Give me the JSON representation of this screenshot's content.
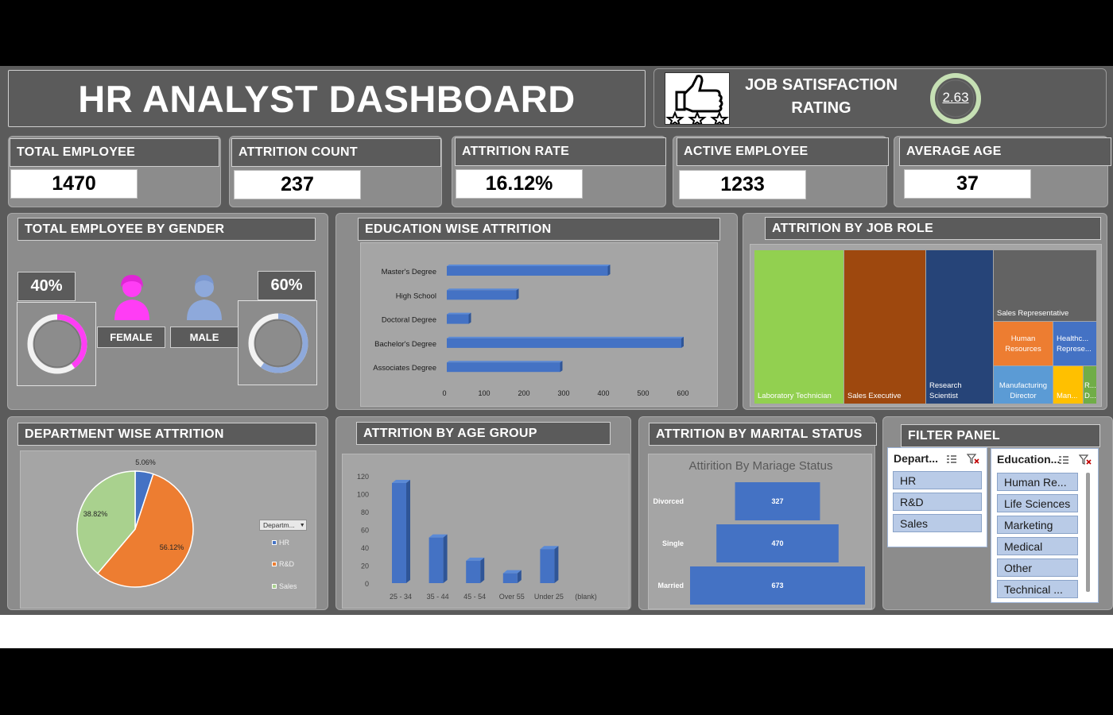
{
  "header": {
    "title": "HR ANALYST DASHBOARD"
  },
  "job_satisfaction": {
    "title_line1": "JOB SATISFACTION",
    "title_line2": "RATING",
    "value": "2.63",
    "ring_color": "#c6e0b4"
  },
  "kpis": [
    {
      "label": "TOTAL EMPLOYEE",
      "value": "1470"
    },
    {
      "label": "ATTRITION COUNT",
      "value": "237"
    },
    {
      "label": "ATTRITION RATE",
      "value": "16.12%"
    },
    {
      "label": "ACTIVE EMPLOYEE",
      "value": "1233"
    },
    {
      "label": "AVERAGE AGE",
      "value": "37"
    }
  ],
  "gender": {
    "title": "TOTAL EMPLOYEE BY GENDER",
    "female": {
      "label": "FEMALE",
      "pct": "40%",
      "fraction": 0.4,
      "color": "#ff3df5"
    },
    "male": {
      "label": "MALE",
      "pct": "60%",
      "fraction": 0.6,
      "color": "#8ea9db"
    }
  },
  "education_panel": {
    "title": "EDUCATION WISE ATTRITION"
  },
  "jobrole_panel": {
    "title": "ATTRITION BY JOB ROLE"
  },
  "department_panel": {
    "title": "DEPARTMENT WISE ATTRITION",
    "legend_button": "Departm...",
    "legend_items": [
      "HR",
      "R&D",
      "Sales"
    ]
  },
  "age_panel": {
    "title": "ATTRITION BY AGE GROUP"
  },
  "marital_panel": {
    "title": "ATTRITION BY MARITAL STATUS",
    "chart_title": "Attirition By Mariage Status"
  },
  "filter_panel": {
    "title": "FILTER PANEL",
    "department_slicer": {
      "header": "Depart...",
      "items": [
        "HR",
        "R&D",
        "Sales"
      ]
    },
    "education_slicer": {
      "header": "Education...",
      "items": [
        "Human Re...",
        "Life Sciences",
        "Marketing",
        "Medical",
        "Other",
        "Technical ..."
      ]
    }
  },
  "chart_data": [
    {
      "type": "bar",
      "orientation": "horizontal",
      "title": "",
      "categories": [
        "Master's Degree",
        "High School",
        "Doctoral Degree",
        "Bachelor's Degree",
        "Associates Degree"
      ],
      "values": [
        405,
        175,
        55,
        590,
        285
      ],
      "xlim": [
        0,
        600
      ],
      "xticks": [
        0,
        100,
        200,
        300,
        400,
        500,
        600
      ],
      "color": "#4472c4",
      "grid": false
    },
    {
      "type": "treemap",
      "title": "",
      "labels": [
        "Laboratory Technician",
        "Sales Executive",
        "Research Scientist",
        "Sales Representative",
        "Human Resources",
        "Healthc... Represe...",
        "Manufacturing Director",
        "Man...",
        "R... D..."
      ],
      "colors": [
        "#92d050",
        "#9e480e",
        "#264478",
        "#636363",
        "#ed7d31",
        "#4472c4",
        "#5b9bd5",
        "#ffc000",
        "#70ad47"
      ]
    },
    {
      "type": "pie",
      "title": "",
      "categories": [
        "HR",
        "R&D",
        "Sales"
      ],
      "values": [
        5.06,
        56.12,
        38.82
      ],
      "data_labels": [
        "5.06%",
        "56.12%",
        "38.82%"
      ],
      "colors": [
        "#4472c4",
        "#ed7d31",
        "#a9d18e"
      ],
      "legend": "right"
    },
    {
      "type": "bar",
      "orientation": "vertical",
      "title": "",
      "categories": [
        "25 - 34",
        "35 - 44",
        "45 - 54",
        "Over 55",
        "Under 25",
        "(blank)"
      ],
      "values": [
        112,
        51,
        25,
        11,
        38,
        0
      ],
      "ylim": [
        0,
        120
      ],
      "yticks": [
        0,
        20,
        40,
        60,
        80,
        100,
        120
      ],
      "color": "#4472c4",
      "grid": false
    },
    {
      "type": "funnel",
      "title": "Attirition By Mariage Status",
      "categories": [
        "Divorced",
        "Single",
        "Married"
      ],
      "values": [
        327,
        470,
        673
      ],
      "color": "#4472c4"
    }
  ]
}
